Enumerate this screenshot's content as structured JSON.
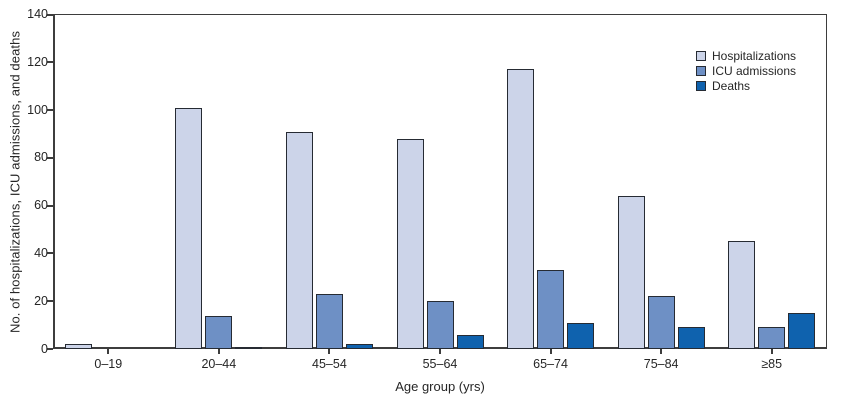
{
  "figure": {
    "background": "#ffffff"
  },
  "chart_data": {
    "type": "bar",
    "title": "",
    "xlabel": "Age group (yrs)",
    "ylabel": "No. of hospitalizations, ICU admissions, and deaths",
    "categories": [
      "0–19",
      "20–44",
      "45–54",
      "55–64",
      "65–74",
      "75–84",
      "≥85"
    ],
    "series": [
      {
        "name": "Hospitalizations",
        "color": "#ccd4e9",
        "values": [
          2,
          101,
          91,
          88,
          117,
          64,
          45
        ]
      },
      {
        "name": "ICU admissions",
        "color": "#6e90c5",
        "values": [
          0,
          14,
          23,
          20,
          33,
          22,
          9
        ]
      },
      {
        "name": "Deaths",
        "color": "#0f62ae",
        "values": [
          0,
          1,
          2,
          6,
          11,
          9,
          15
        ]
      }
    ],
    "ylim": [
      0,
      140
    ],
    "yticks": [
      0,
      20,
      40,
      60,
      80,
      100,
      120,
      140
    ],
    "grid": false,
    "legend_position": "top-right",
    "bar_outline_color": "#262b33",
    "axis_color": "#3d3d3d",
    "text_color": "#262626"
  }
}
